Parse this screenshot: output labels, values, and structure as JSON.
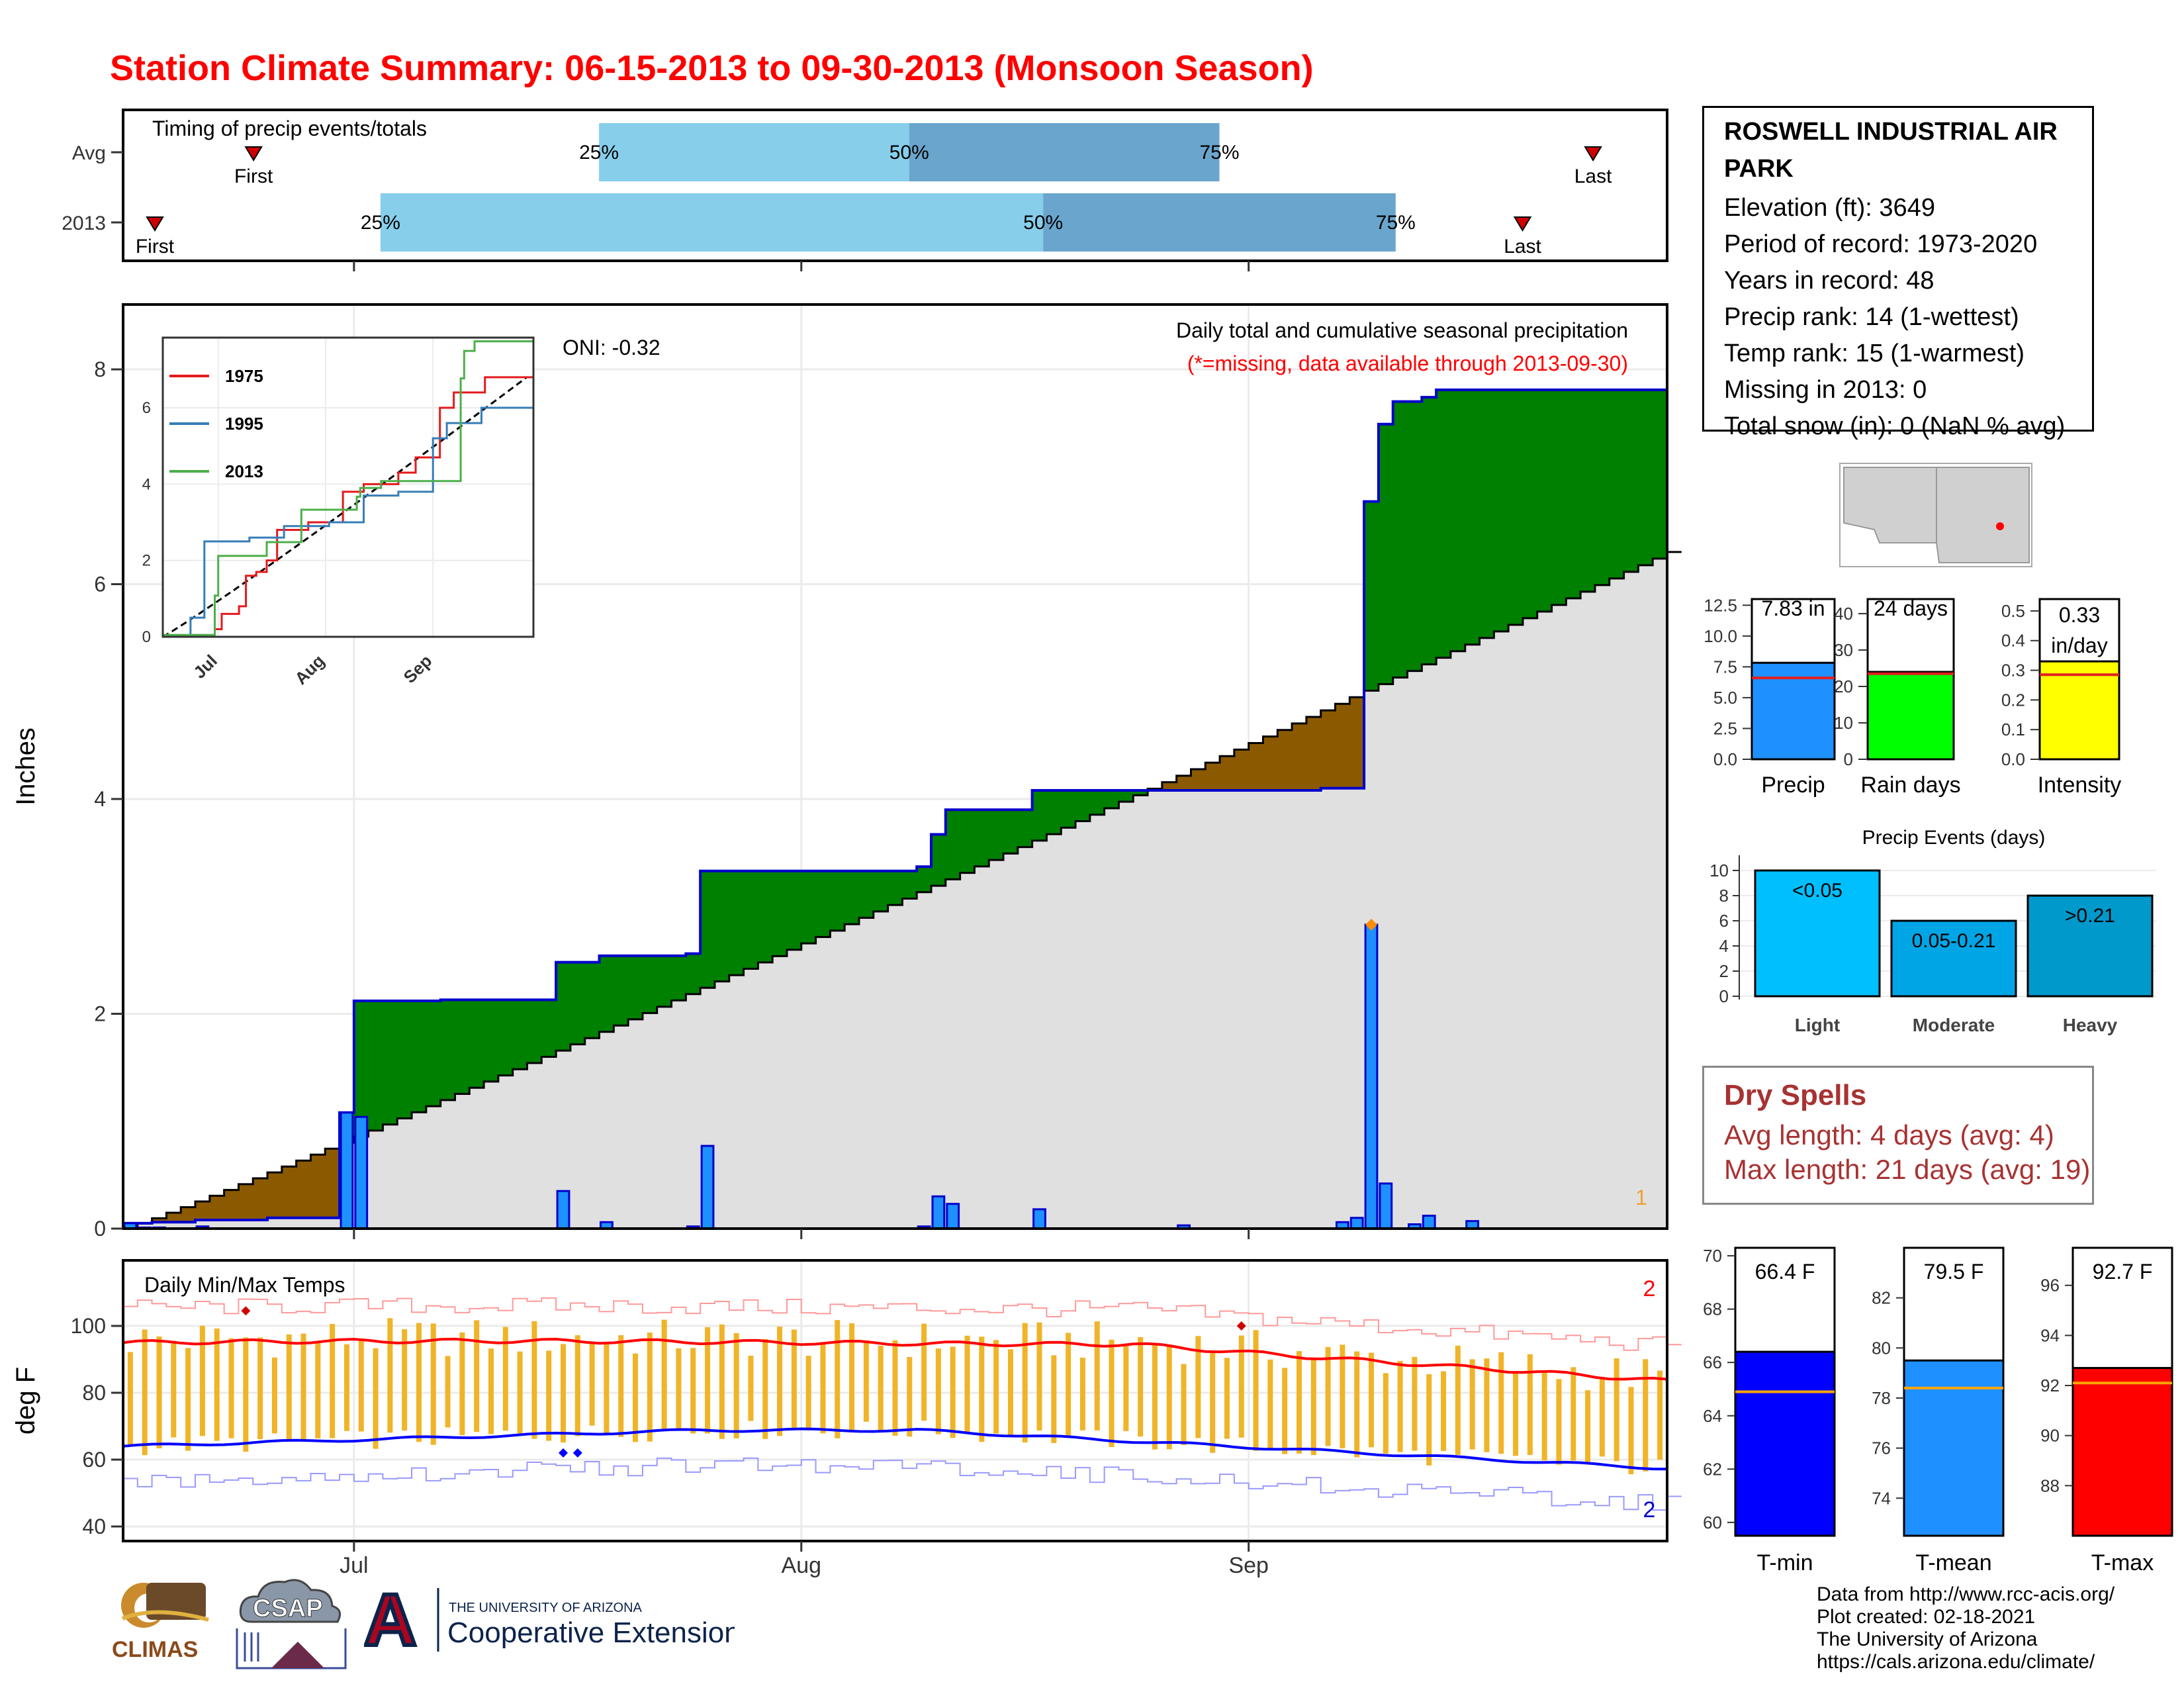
{
  "title": "Station Climate Summary: 06-15-2013 to 09-30-2013 (Monsoon Season)",
  "colors": {
    "title": "#ff0000",
    "timing_light": "#87ceeb",
    "timing_dark": "#6aa5cd",
    "surplus": "#008000",
    "deficit": "#8b5a00",
    "avg_area": "#e0e0e0",
    "daily_bar": "#1e90ff",
    "max_temp": "#ff0000",
    "min_temp": "#0000ff",
    "temp_range_bar": "#f0b429"
  },
  "timing": {
    "title": "Timing of precip events/totals",
    "rows": [
      {
        "label": "Avg",
        "first_day": 14,
        "q25_day": 63,
        "q50_day": 107,
        "q75_day": 151,
        "last_day": 204,
        "first_label": "First",
        "last_label": "Last",
        "q25_label": "25%",
        "q50_label": "50%",
        "q75_label": "75%"
      },
      {
        "label": "2013",
        "first_day": 0,
        "q25_day": 32,
        "q50_day": 126,
        "q75_day": 176,
        "last_day": 194,
        "first_label": "First",
        "last_label": "Last",
        "q25_label": "25%",
        "q50_label": "50%",
        "q75_label": "75%"
      }
    ]
  },
  "main_chart": {
    "type": "area",
    "ylabel": "Inches",
    "subtitle": "Daily total and cumulative seasonal precipitation",
    "missing_note": "(*=missing, data available through 2013-09-30)",
    "oni": "ONI: -0.32",
    "corner_count": "1",
    "ylim": [
      0,
      8.5
    ],
    "yticks": [
      0,
      2,
      4,
      6,
      8
    ],
    "month_labels": [
      {
        "label": "Jul",
        "day": 16
      },
      {
        "label": "Aug",
        "day": 47
      },
      {
        "label": "Sep",
        "day": 78
      }
    ],
    "avg_end": 6.3,
    "obs_steps": [
      [
        0,
        0.05
      ],
      [
        2,
        0.06
      ],
      [
        5,
        0.08
      ],
      [
        10,
        0.1
      ],
      [
        15,
        1.08
      ],
      [
        16,
        2.12
      ],
      [
        22,
        2.13
      ],
      [
        30,
        2.48
      ],
      [
        33,
        2.54
      ],
      [
        39,
        2.56
      ],
      [
        40,
        3.33
      ],
      [
        55,
        3.37
      ],
      [
        56,
        3.67
      ],
      [
        57,
        3.9
      ],
      [
        63,
        4.08
      ],
      [
        73,
        4.08
      ],
      [
        83,
        4.1
      ],
      [
        86,
        6.77
      ],
      [
        87,
        7.49
      ],
      [
        88,
        7.7
      ],
      [
        90,
        7.74
      ],
      [
        91,
        7.81
      ]
    ],
    "daily_precip": [
      [
        0,
        0.05
      ],
      [
        1,
        0.01
      ],
      [
        2,
        0.01
      ],
      [
        5,
        0.02
      ],
      [
        15,
        1.08
      ],
      [
        16,
        1.04
      ],
      [
        30,
        0.35
      ],
      [
        33,
        0.06
      ],
      [
        39,
        0.02
      ],
      [
        40,
        0.77
      ],
      [
        55,
        0.02
      ],
      [
        56,
        0.3
      ],
      [
        57,
        0.23
      ],
      [
        63,
        0.18
      ],
      [
        73,
        0.03
      ],
      [
        84,
        0.06
      ],
      [
        85,
        0.1
      ],
      [
        86,
        2.83
      ],
      [
        87,
        0.42
      ],
      [
        89,
        0.04
      ],
      [
        90,
        0.12
      ],
      [
        93,
        0.07
      ]
    ],
    "highlight_day": 86,
    "highlight_value": 2.83
  },
  "inset": {
    "series": [
      {
        "name": "1975",
        "color": "#e41a1c"
      },
      {
        "name": "1995",
        "color": "#377eb8"
      },
      {
        "name": "2013",
        "color": "#4daf4a"
      }
    ],
    "yticks": [
      0,
      2,
      4,
      6
    ],
    "month_labels": [
      "Jul",
      "Aug",
      "Sep"
    ]
  },
  "temps": {
    "title": "Daily Min/Max Temps",
    "ylabel": "deg F",
    "ylim": [
      37,
      118
    ],
    "yticks": [
      40,
      60,
      80,
      100
    ],
    "max_record_count": "2",
    "min_record_count": "2"
  },
  "info": {
    "station": "ROSWELL INDUSTRIAL AIR PARK",
    "rows": [
      "Elevation (ft): 3649",
      "Period of record: 1973-2020",
      "Years in record: 48",
      "Precip rank: 14 (1-wettest)",
      "Temp rank: 15 (1-warmest)",
      "Missing in 2013: 0",
      "Total snow (in): 0 (NaN % avg)"
    ]
  },
  "summary_bars": [
    {
      "name": "Precip",
      "value": 7.83,
      "avg": 6.6,
      "label": "7.83 in",
      "color": "#1e90ff",
      "ymax": 13.0,
      "ticks": [
        "0.0",
        "2.5",
        "5.0",
        "7.5",
        "10.0",
        "12.5"
      ],
      "tick_values": [
        0,
        2.5,
        5,
        7.5,
        10,
        12.5
      ]
    },
    {
      "name": "Rain days",
      "value": 24,
      "avg": 23.5,
      "label": "24 days",
      "color": "#00ff00",
      "ymax": 44,
      "ticks": [
        "0",
        "10",
        "20",
        "30",
        "40"
      ],
      "tick_values": [
        0,
        10,
        20,
        30,
        40
      ]
    },
    {
      "name": "Intensity",
      "value": 0.33,
      "avg": 0.285,
      "label": "0.33 in/day",
      "label_lines": [
        "0.33",
        "in/day"
      ],
      "color": "#ffff00",
      "ymax": 0.54,
      "ticks": [
        "0.0",
        "0.1",
        "0.2",
        "0.3",
        "0.4",
        "0.5"
      ],
      "tick_values": [
        0,
        0.1,
        0.2,
        0.3,
        0.4,
        0.5
      ]
    }
  ],
  "precip_events": {
    "title": "Precip Events (days)",
    "ymax": 10.5,
    "ticks": [
      "0",
      "2",
      "4",
      "6",
      "8",
      "10"
    ],
    "tick_values": [
      0,
      2,
      4,
      6,
      8,
      10
    ],
    "bars": [
      {
        "category": "Light",
        "label": "<0.05",
        "value": 10,
        "color": "#00bfff"
      },
      {
        "category": "Moderate",
        "label": "0.05-0.21",
        "value": 6,
        "color": "#00a5e6"
      },
      {
        "category": "Heavy",
        "label": ">0.21",
        "value": 8,
        "color": "#0099cc"
      }
    ]
  },
  "dry_spells": {
    "title": "Dry Spells",
    "avg_line": "Avg length: 4 days (avg: 4)",
    "max_line": "Max length: 21 days (avg: 19)"
  },
  "temp_bars": [
    {
      "name": "T-min",
      "value": 66.4,
      "avg": 64.9,
      "label": "66.4 F",
      "color": "#0000ff",
      "ymin": 59.5,
      "ymax": 70.3,
      "ticks": [
        "60",
        "62",
        "64",
        "66",
        "68",
        "70"
      ],
      "tick_values": [
        60,
        62,
        64,
        66,
        68,
        70
      ]
    },
    {
      "name": "T-mean",
      "value": 79.5,
      "avg": 78.4,
      "label": "79.5 F",
      "color": "#1e90ff",
      "ymin": 72.5,
      "ymax": 84.0,
      "ticks": [
        "74",
        "76",
        "78",
        "80",
        "82"
      ],
      "tick_values": [
        74,
        76,
        78,
        80,
        82
      ]
    },
    {
      "name": "T-max",
      "value": 92.7,
      "avg": 92.1,
      "label": "92.7 F",
      "color": "#ff0000",
      "ymin": 86.0,
      "ymax": 97.5,
      "ticks": [
        "88",
        "90",
        "92",
        "94",
        "96"
      ],
      "tick_values": [
        88,
        90,
        92,
        94,
        96
      ]
    }
  ],
  "credits": [
    "Data from http://www.rcc-acis.org/",
    "Plot created: 02-18-2021",
    "The University of Arizona",
    "https://cals.arizona.edu/climate/"
  ],
  "logos": {
    "climas": "CLIMAS",
    "csap": "CSAP",
    "ua_top": "THE UNIVERSITY OF ARIZONA",
    "ua_bottom": "Cooperative Extension",
    "ua_letter": "A"
  }
}
